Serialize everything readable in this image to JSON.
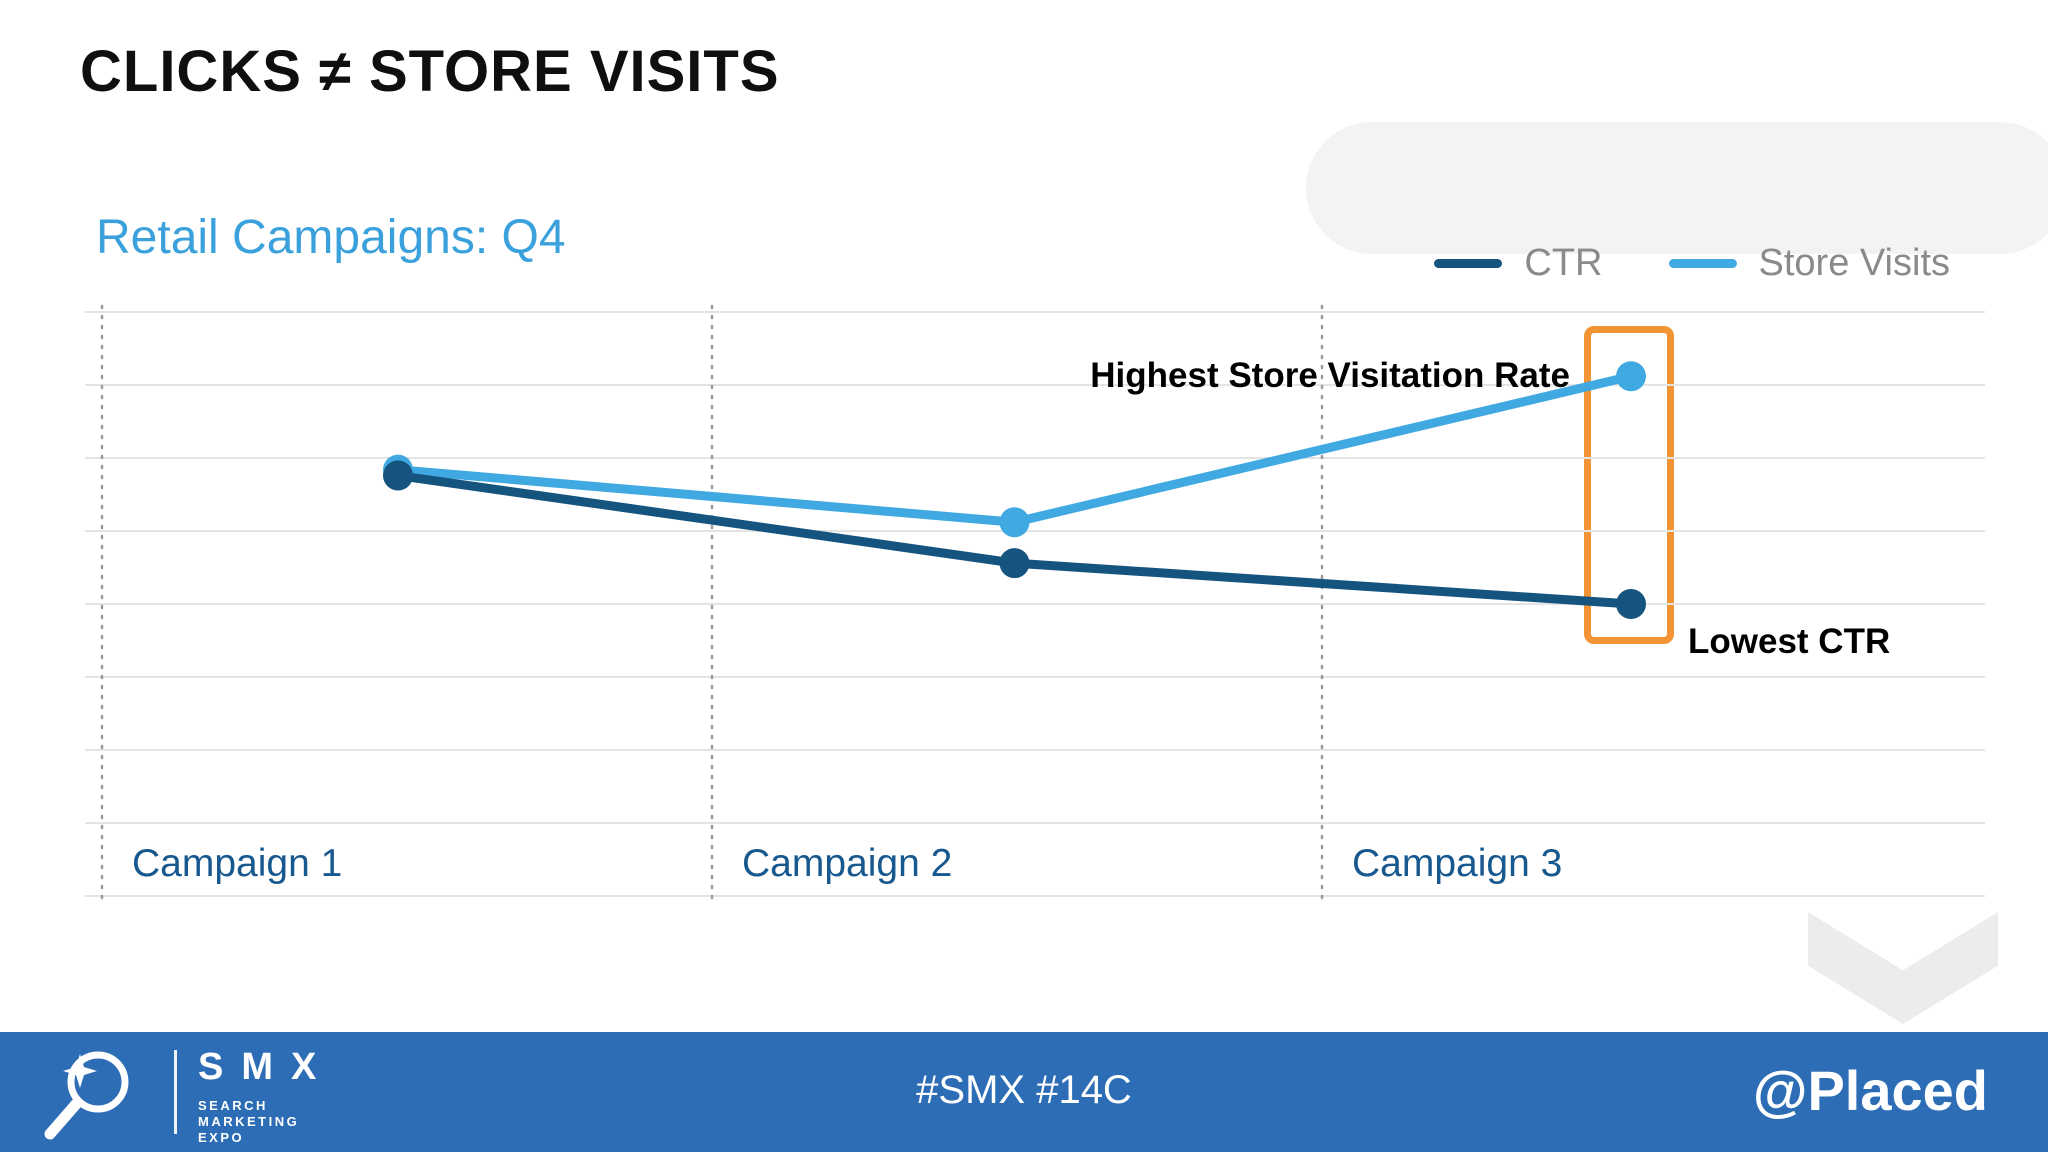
{
  "slide": {
    "title": "CLICKS ≠ STORE VISITS"
  },
  "colors": {
    "chart_title": "#3aa1dd",
    "category_label": "#17588f",
    "legend_label": "#8a8a8a",
    "footer_bg": "#2d6db6"
  },
  "chart_data": {
    "type": "line",
    "title": "Retail Campaigns: Q4",
    "categories": [
      "Campaign 1",
      "Campaign 2",
      "Campaign 3"
    ],
    "series": [
      {
        "name": "CTR",
        "color": "#15547f",
        "values": [
          7.2,
          5.7,
          5.0
        ]
      },
      {
        "name": "Store Visits",
        "color": "#41a9e1",
        "values": [
          7.3,
          6.4,
          8.9
        ]
      }
    ],
    "xlabel": "",
    "ylabel": "",
    "ylim": [
      0,
      10
    ],
    "y_axis_labeled": false,
    "grid": {
      "horizontal": "light solid lines",
      "vertical": "dotted lines at each category start"
    },
    "legend_position": "top-right",
    "annotations": [
      {
        "text": "Highest Store Visitation Rate",
        "series": "Store Visits",
        "category": "Campaign 3",
        "position": "left-of-point"
      },
      {
        "text": "Lowest CTR",
        "series": "CTR",
        "category": "Campaign 3",
        "position": "right-of-point"
      }
    ],
    "highlight_box": {
      "category": "Campaign 3",
      "color": "#f29436",
      "style": "orange outlined rectangle around Campaign 3 data points"
    }
  },
  "footer": {
    "bg_color": "#2d6db6",
    "logo": {
      "brand": "SMX",
      "tagline_lines": [
        "SEARCH",
        "MARKETING",
        "EXPO"
      ],
      "icon": "magnifier-sparkle-icon"
    },
    "hashtags": "#SMX #14C",
    "handle": "@Placed"
  }
}
